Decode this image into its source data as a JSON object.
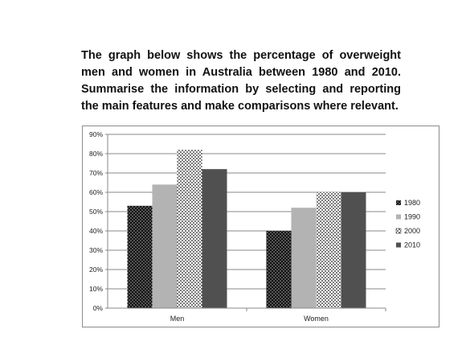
{
  "prompt": {
    "text": "The graph below shows the percentage of overweight men and women in Australia between 1980 and 2010. Summarise the information by selecting and reporting the main features and make comparisons where relevant."
  },
  "chart_data": {
    "type": "bar",
    "categories": [
      "Men",
      "Women"
    ],
    "series": [
      {
        "name": "1980",
        "values": [
          53,
          40
        ]
      },
      {
        "name": "1990",
        "values": [
          64,
          52
        ]
      },
      {
        "name": "2000",
        "values": [
          82,
          60
        ]
      },
      {
        "name": "2010",
        "values": [
          72,
          60
        ]
      }
    ],
    "y_ticks": [
      "0%",
      "10%",
      "20%",
      "30%",
      "40%",
      "50%",
      "60%",
      "70%",
      "80%",
      "90%"
    ],
    "ylim": [
      0,
      90
    ],
    "grid": true,
    "legend_position": "right",
    "series_styles": [
      "dark-dotted",
      "light-gray",
      "white-dotted",
      "dark-gray"
    ],
    "colors": {
      "gray_light": "#b3b3b3",
      "gray_dark": "#505050",
      "black": "#111111"
    }
  }
}
